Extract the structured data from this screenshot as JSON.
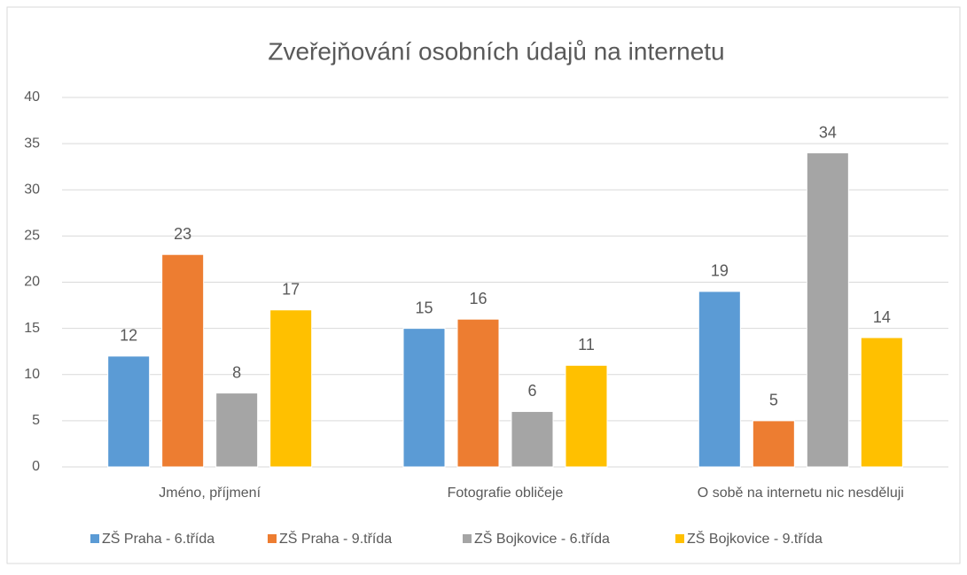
{
  "chart_data": {
    "type": "bar",
    "title": "Zveřejňování osobních údajů na internetu",
    "categories": [
      "Jméno, příjmení",
      "Fotografie obličeje",
      "O sobě na internetu nic nesděluji"
    ],
    "series": [
      {
        "name": "ZŠ Praha - 6.třída",
        "color": "#5b9bd5",
        "values": [
          12,
          15,
          19
        ]
      },
      {
        "name": "ZŠ Praha - 9.třída",
        "color": "#ed7d31",
        "values": [
          23,
          16,
          5
        ]
      },
      {
        "name": "ZŠ Bojkovice - 6.třída",
        "color": "#a5a5a5",
        "values": [
          8,
          6,
          34
        ]
      },
      {
        "name": "ZŠ Bojkovice - 9.třída",
        "color": "#ffc000",
        "values": [
          17,
          11,
          14
        ]
      }
    ],
    "ylim": [
      0,
      40
    ],
    "yticks": [
      0,
      5,
      10,
      15,
      20,
      25,
      30,
      35,
      40
    ],
    "grid": true,
    "legend": "bottom"
  }
}
